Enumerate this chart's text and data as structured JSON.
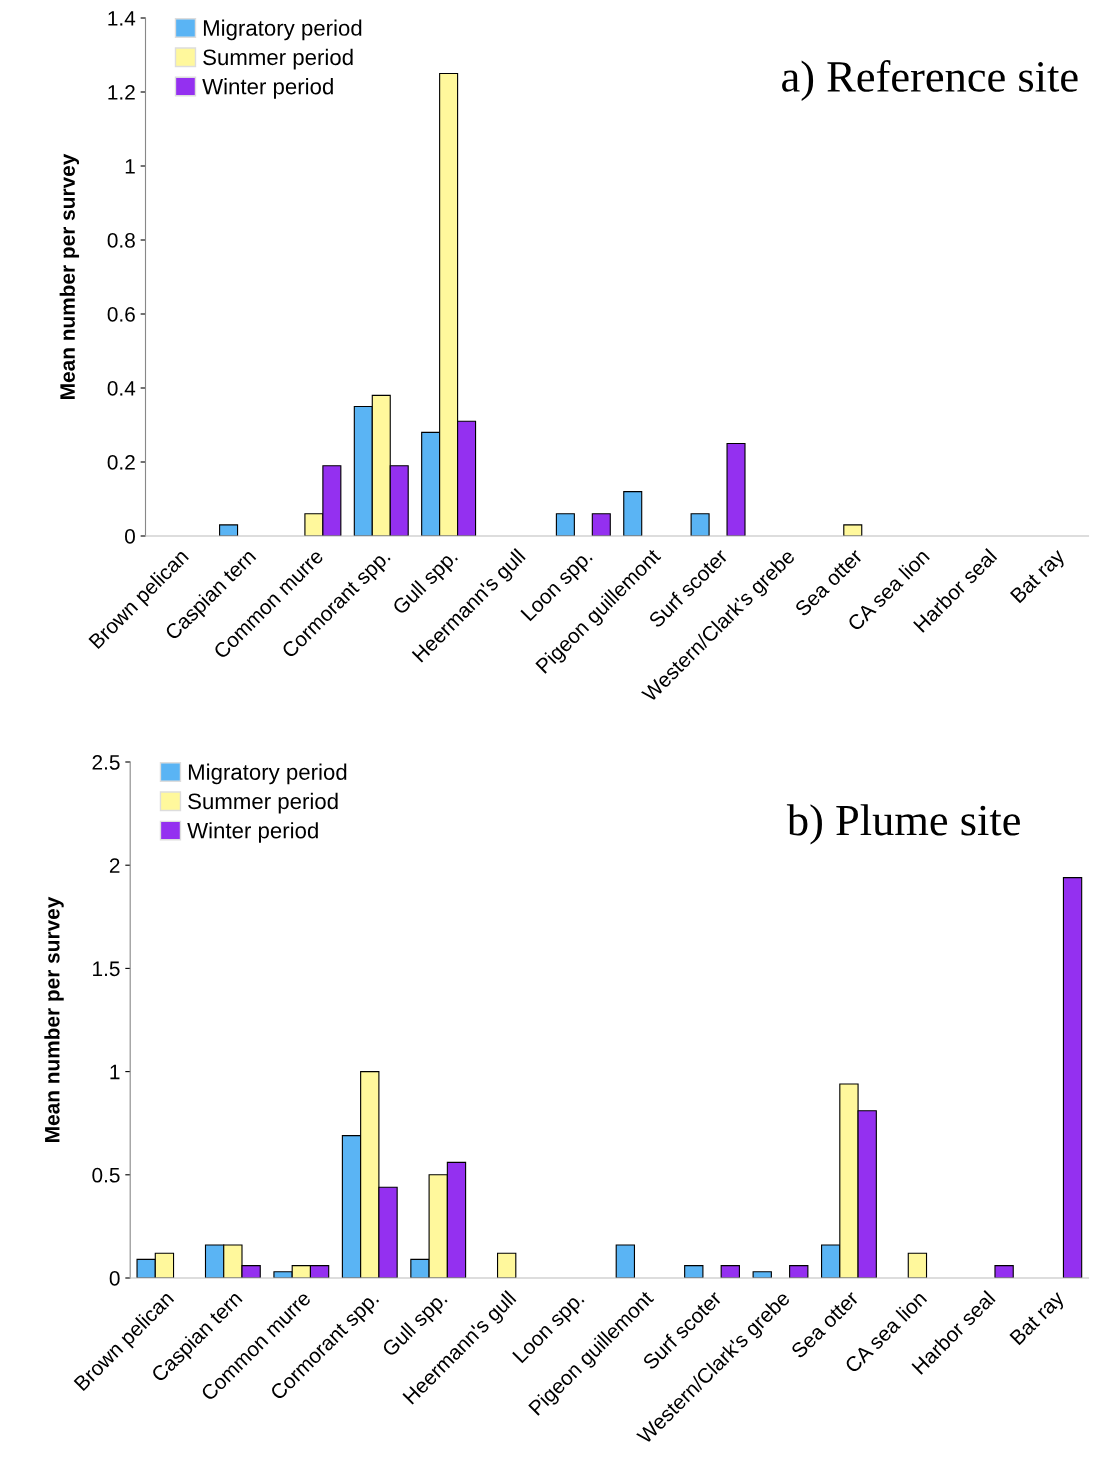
{
  "chart_data": [
    {
      "type": "bar",
      "title": "a) Reference site",
      "ylabel": "Mean number per survey",
      "categories": [
        "Brown pelican",
        "Caspian tern",
        "Common murre",
        "Cormorant spp.",
        "Gull spp.",
        "Heermann's gull",
        "Loon spp.",
        "Pigeon guillemont",
        "Surf scoter",
        "Western/Clark's grebe",
        "Sea otter",
        "CA sea lion",
        "Harbor seal",
        "Bat ray"
      ],
      "series": [
        {
          "name": "Migratory period",
          "color": "#5ab4f4",
          "values": [
            0,
            0.03,
            0,
            0.35,
            0.28,
            0,
            0.06,
            0.12,
            0.06,
            0,
            0,
            0,
            0,
            0
          ]
        },
        {
          "name": "Summer period",
          "color": "#fff89c",
          "values": [
            0,
            0,
            0.06,
            0.38,
            1.25,
            0,
            0,
            0,
            0,
            0,
            0.03,
            0,
            0,
            0
          ]
        },
        {
          "name": "Winter period",
          "color": "#9430f0",
          "values": [
            0,
            0,
            0.19,
            0.19,
            0.31,
            0,
            0.06,
            0,
            0.25,
            0,
            0,
            0,
            0,
            0
          ]
        }
      ],
      "ylim": [
        0,
        1.4
      ],
      "yticks": [
        0,
        0.2,
        0.4,
        0.6,
        0.8,
        1,
        1.2,
        1.4
      ],
      "grid": false,
      "legend": "top left"
    },
    {
      "type": "bar",
      "title": "b) Plume site",
      "ylabel": "Mean number per survey",
      "categories": [
        "Brown pelican",
        "Caspian tern",
        "Common murre",
        "Cormorant spp.",
        "Gull spp.",
        "Heermann's gull",
        "Loon spp.",
        "Pigeon guillemont",
        "Surf scoter",
        "Western/Clark's grebe",
        "Sea otter",
        "CA sea lion",
        "Harbor seal",
        "Bat ray"
      ],
      "series": [
        {
          "name": "Migratory period",
          "color": "#5ab4f4",
          "values": [
            0.09,
            0.16,
            0.03,
            0.69,
            0.09,
            0,
            0,
            0.16,
            0.06,
            0.03,
            0.16,
            0,
            0,
            0
          ]
        },
        {
          "name": "Summer period",
          "color": "#fff89c",
          "values": [
            0.12,
            0.16,
            0.06,
            1.0,
            0.5,
            0.12,
            0,
            0,
            0,
            0,
            0.94,
            0.12,
            0,
            0
          ]
        },
        {
          "name": "Winter period",
          "color": "#9430f0",
          "values": [
            0,
            0.06,
            0.06,
            0.44,
            0.56,
            0,
            0,
            0,
            0.06,
            0.06,
            0.81,
            0,
            0.06,
            1.94
          ]
        }
      ],
      "ylim": [
        0,
        2.5
      ],
      "yticks": [
        0,
        0.5,
        1,
        1.5,
        2,
        2.5
      ],
      "grid": false,
      "legend": "top left"
    }
  ]
}
